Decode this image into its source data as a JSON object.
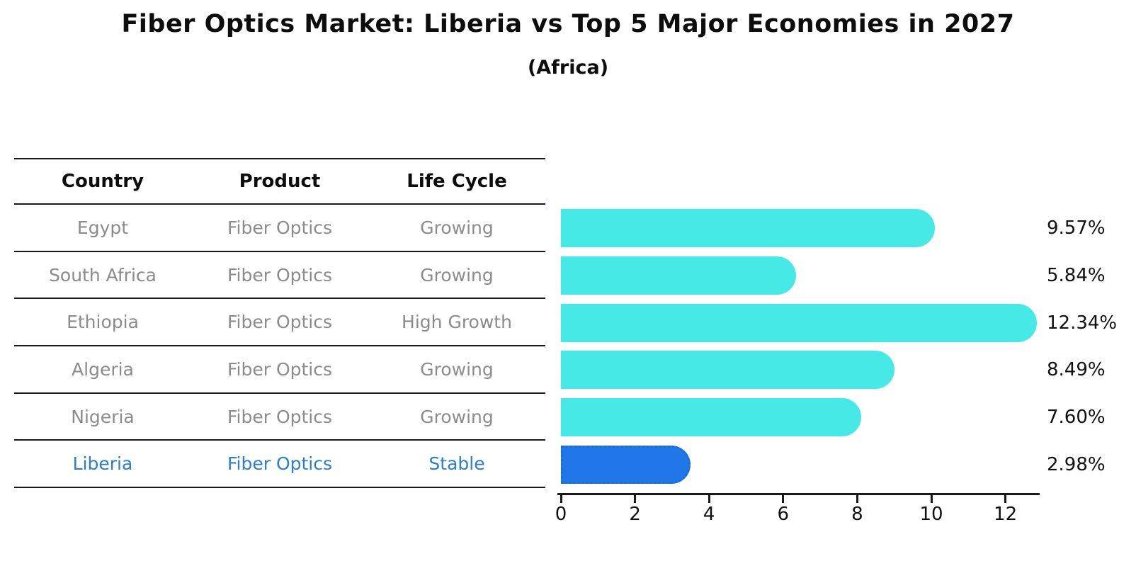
{
  "title": "Fiber Optics Market: Liberia vs Top 5 Major Economies in 2027",
  "subtitle": "(Africa)",
  "table": {
    "headers": [
      "Country",
      "Product",
      "Life Cycle"
    ],
    "rows": [
      {
        "country": "Egypt",
        "product": "Fiber Optics",
        "life_cycle": "Growing",
        "highlight": false
      },
      {
        "country": "South Africa",
        "product": "Fiber Optics",
        "life_cycle": "Growing",
        "highlight": false
      },
      {
        "country": "Ethiopia",
        "product": "Fiber Optics",
        "life_cycle": "High Growth",
        "highlight": false
      },
      {
        "country": "Algeria",
        "product": "Fiber Optics",
        "life_cycle": "Growing",
        "highlight": false
      },
      {
        "country": "Nigeria",
        "product": "Fiber Optics",
        "life_cycle": "Growing",
        "highlight": false
      },
      {
        "country": "Liberia",
        "product": "Fiber Optics",
        "life_cycle": "Stable",
        "highlight": true
      }
    ]
  },
  "chart_data": {
    "type": "bar",
    "orientation": "horizontal",
    "title": "Fiber Optics Market: Liberia vs Top 5 Major Economies in 2027",
    "subtitle": "(Africa)",
    "categories": [
      "Egypt",
      "South Africa",
      "Ethiopia",
      "Algeria",
      "Nigeria",
      "Liberia"
    ],
    "values": [
      9.57,
      5.84,
      12.34,
      8.49,
      7.6,
      2.98
    ],
    "value_labels": [
      "9.57%",
      "5.84%",
      "12.34%",
      "8.49%",
      "7.60%",
      "2.98%"
    ],
    "highlight_index": 5,
    "xticks": [
      "0",
      "2",
      "4",
      "6",
      "8",
      "10",
      "12"
    ],
    "xtick_values": [
      0,
      2,
      4,
      6,
      8,
      10,
      12
    ],
    "xlim": [
      0,
      12.9
    ],
    "grid": false,
    "legend": false,
    "colors": {
      "bar": "#46e9e6",
      "highlight_bar": "#2176e8",
      "highlight_bar_border": "#1a6cd8",
      "highlight_text": "#2d7ec9",
      "table_text": "#8b8b8b",
      "axis_text": "#111111"
    }
  }
}
